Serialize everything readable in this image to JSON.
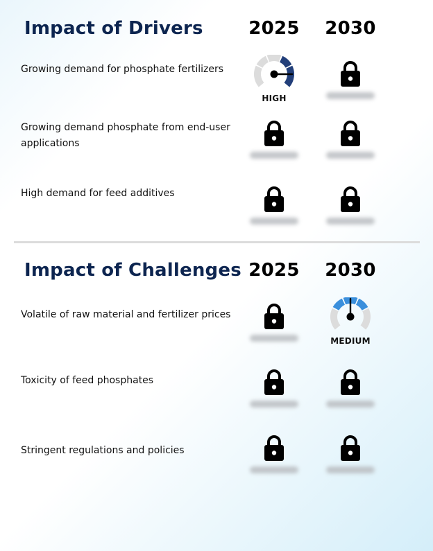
{
  "drivers": {
    "title": "Impact of Drivers",
    "years": [
      "2025",
      "2030"
    ],
    "rows": [
      {
        "label": "Growing demand for phosphate fertilizers",
        "cells": [
          {
            "type": "gauge",
            "level": "high",
            "label": "HIGH"
          },
          {
            "type": "locked"
          }
        ]
      },
      {
        "label": "Growing demand phosphate from end-user applications",
        "cells": [
          {
            "type": "locked"
          },
          {
            "type": "locked"
          }
        ]
      },
      {
        "label": "High demand for feed additives",
        "cells": [
          {
            "type": "locked"
          },
          {
            "type": "locked"
          }
        ]
      }
    ]
  },
  "challenges": {
    "title": "Impact of Challenges",
    "years": [
      "2025",
      "2030"
    ],
    "rows": [
      {
        "label": "Volatile of raw material and fertilizer prices",
        "cells": [
          {
            "type": "locked"
          },
          {
            "type": "gauge",
            "level": "medium",
            "label": "MEDIUM"
          }
        ]
      },
      {
        "label": "Toxicity of feed phosphates",
        "cells": [
          {
            "type": "locked"
          },
          {
            "type": "locked"
          }
        ]
      },
      {
        "label": "Stringent regulations and policies",
        "cells": [
          {
            "type": "locked"
          },
          {
            "type": "locked"
          }
        ]
      }
    ]
  },
  "colors": {
    "title": "#0d2550",
    "gauge_high": "#223f7a",
    "gauge_medium": "#3a8fdc",
    "gauge_track": "#dcdcdc",
    "lock": "#000000"
  },
  "icons": {
    "locked": "lock-icon",
    "gauge": "gauge-icon"
  }
}
